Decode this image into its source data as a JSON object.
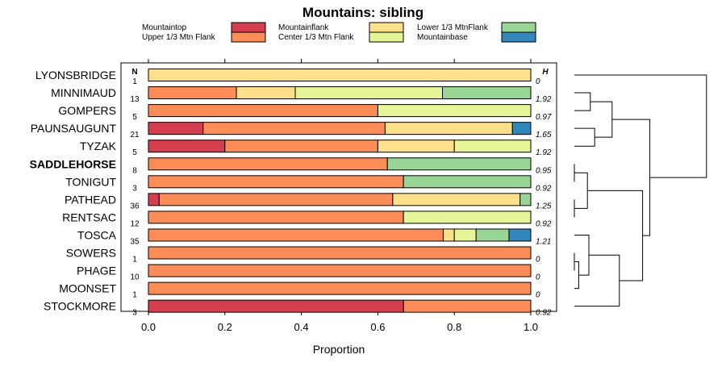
{
  "chart_data": {
    "type": "stacked-bar",
    "title": "Mountains: sibling",
    "xlabel": "Proportion",
    "xlim": [
      0,
      1
    ],
    "xticks": [
      "0.0",
      "0.2",
      "0.4",
      "0.6",
      "0.8",
      "1.0"
    ],
    "n_header": "N",
    "h_header": "H",
    "legend": [
      {
        "name": "Mountaintop",
        "color": "#d53e4f"
      },
      {
        "name": "Upper 1/3 Mtn Flank",
        "color": "#fc8d59"
      },
      {
        "name": "Mountainflank",
        "color": "#fee08b"
      },
      {
        "name": "Center 1/3 Mtn Flank",
        "color": "#e6f598"
      },
      {
        "name": "Lower 1/3 MtnFlank",
        "color": "#99d594"
      },
      {
        "name": "Mountainbase",
        "color": "#3288bd"
      }
    ],
    "stack_order": [
      "Mountaintop",
      "Upper 1/3 Mtn Flank",
      "Mountainflank",
      "Center 1/3 Mtn Flank",
      "Lower 1/3 MtnFlank",
      "Mountainbase"
    ],
    "rows": [
      {
        "label": "LYONSBRIDGE",
        "bold": false,
        "n": "1",
        "h": "0",
        "values": [
          0,
          0,
          1,
          0,
          0,
          0
        ]
      },
      {
        "label": "MINNIMAUD",
        "bold": false,
        "n": "13",
        "h": "1.92",
        "values": [
          0,
          0.23,
          0.154,
          0.385,
          0.231,
          0
        ]
      },
      {
        "label": "GOMPERS",
        "bold": false,
        "n": "5",
        "h": "0.97",
        "values": [
          0,
          0.6,
          0,
          0.4,
          0,
          0
        ]
      },
      {
        "label": "PAUNSAUGUNT",
        "bold": false,
        "n": "21",
        "h": "1.65",
        "values": [
          0.143,
          0.476,
          0.333,
          0,
          0,
          0.048
        ]
      },
      {
        "label": "TYZAK",
        "bold": false,
        "n": "5",
        "h": "1.92",
        "values": [
          0.2,
          0.4,
          0.2,
          0.2,
          0,
          0
        ]
      },
      {
        "label": "SADDLEHORSE",
        "bold": true,
        "n": "8",
        "h": "0.95",
        "values": [
          0,
          0.625,
          0,
          0,
          0.375,
          0
        ]
      },
      {
        "label": "TONIGUT",
        "bold": false,
        "n": "3",
        "h": "0.92",
        "values": [
          0,
          0.667,
          0,
          0,
          0.333,
          0
        ]
      },
      {
        "label": "PATHEAD",
        "bold": false,
        "n": "36",
        "h": "1.25",
        "values": [
          0.028,
          0.611,
          0.333,
          0,
          0.028,
          0
        ]
      },
      {
        "label": "RENTSAC",
        "bold": false,
        "n": "12",
        "h": "0.92",
        "values": [
          0,
          0.667,
          0,
          0.333,
          0,
          0
        ]
      },
      {
        "label": "TOSCA",
        "bold": false,
        "n": "35",
        "h": "1.21",
        "values": [
          0,
          0.771,
          0.029,
          0.057,
          0.086,
          0.057
        ]
      },
      {
        "label": "SOWERS",
        "bold": false,
        "n": "1",
        "h": "0",
        "values": [
          0,
          1,
          0,
          0,
          0,
          0
        ]
      },
      {
        "label": "PHAGE",
        "bold": false,
        "n": "10",
        "h": "0",
        "values": [
          0,
          1,
          0,
          0,
          0,
          0
        ]
      },
      {
        "label": "MOONSET",
        "bold": false,
        "n": "1",
        "h": "0",
        "values": [
          0,
          1,
          0,
          0,
          0,
          0
        ]
      },
      {
        "label": "STOCKMORE",
        "bold": false,
        "n": "3",
        "h": "0.92",
        "values": [
          0.667,
          0.333,
          0,
          0,
          0,
          0
        ]
      }
    ],
    "dendrogram": {
      "leaves": [
        "LYONSBRIDGE",
        "MINNIMAUD",
        "GOMPERS",
        "PAUNSAUGUNT",
        "TYZAK",
        "SADDLEHORSE",
        "TONIGUT",
        "PATHEAD",
        "RENTSAC",
        "TOSCA",
        "SOWERS",
        "PHAGE",
        "MOONSET",
        "STOCKMORE"
      ],
      "merges": [
        {
          "a": "L5",
          "b": "L6",
          "h": 0.0
        },
        {
          "a": "L7",
          "b": "L8",
          "h": 0.0
        },
        {
          "a": "L10",
          "b": "L11",
          "h": 0.0
        },
        {
          "a": "M2",
          "b": "L12",
          "h": 0.03
        },
        {
          "a": "M0",
          "b": "M1",
          "h": 0.09
        },
        {
          "a": "L9",
          "b": "M3",
          "h": 0.1
        },
        {
          "a": "L1",
          "b": "L2",
          "h": 0.11
        },
        {
          "a": "L3",
          "b": "L4",
          "h": 0.14
        },
        {
          "a": "M6",
          "b": "M7",
          "h": 0.26
        },
        {
          "a": "M5",
          "b": "L13",
          "h": 0.31
        },
        {
          "a": "M4",
          "b": "M9",
          "h": 0.47
        },
        {
          "a": "M8",
          "b": "M10",
          "h": 0.52
        },
        {
          "a": "L0",
          "b": "M11",
          "h": 0.91
        }
      ]
    }
  }
}
